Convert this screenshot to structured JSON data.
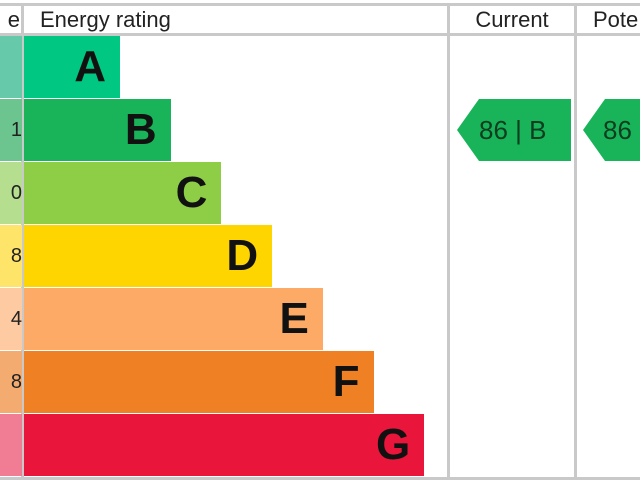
{
  "chart_data": {
    "type": "bar",
    "columns": [
      "e",
      "Energy rating",
      "Current",
      "Pote"
    ],
    "categories": [
      "A",
      "B",
      "C",
      "D",
      "E",
      "F",
      "G"
    ],
    "score_fragments": [
      "",
      "1",
      "0",
      "8",
      "4",
      "8",
      ""
    ],
    "colors": [
      "#00c781",
      "#19b459",
      "#8dce46",
      "#ffd500",
      "#fcaa65",
      "#ef8023",
      "#e9153b"
    ],
    "light_colors": [
      "#66c9a9",
      "#6cc58e",
      "#b5de8e",
      "#ffe46a",
      "#fdcaa1",
      "#f4ab6f",
      "#f07d94"
    ],
    "current": {
      "value": 86,
      "band": "B",
      "label": "86 |  B"
    },
    "potential": {
      "value": 86,
      "band": "B",
      "label": "86"
    }
  }
}
